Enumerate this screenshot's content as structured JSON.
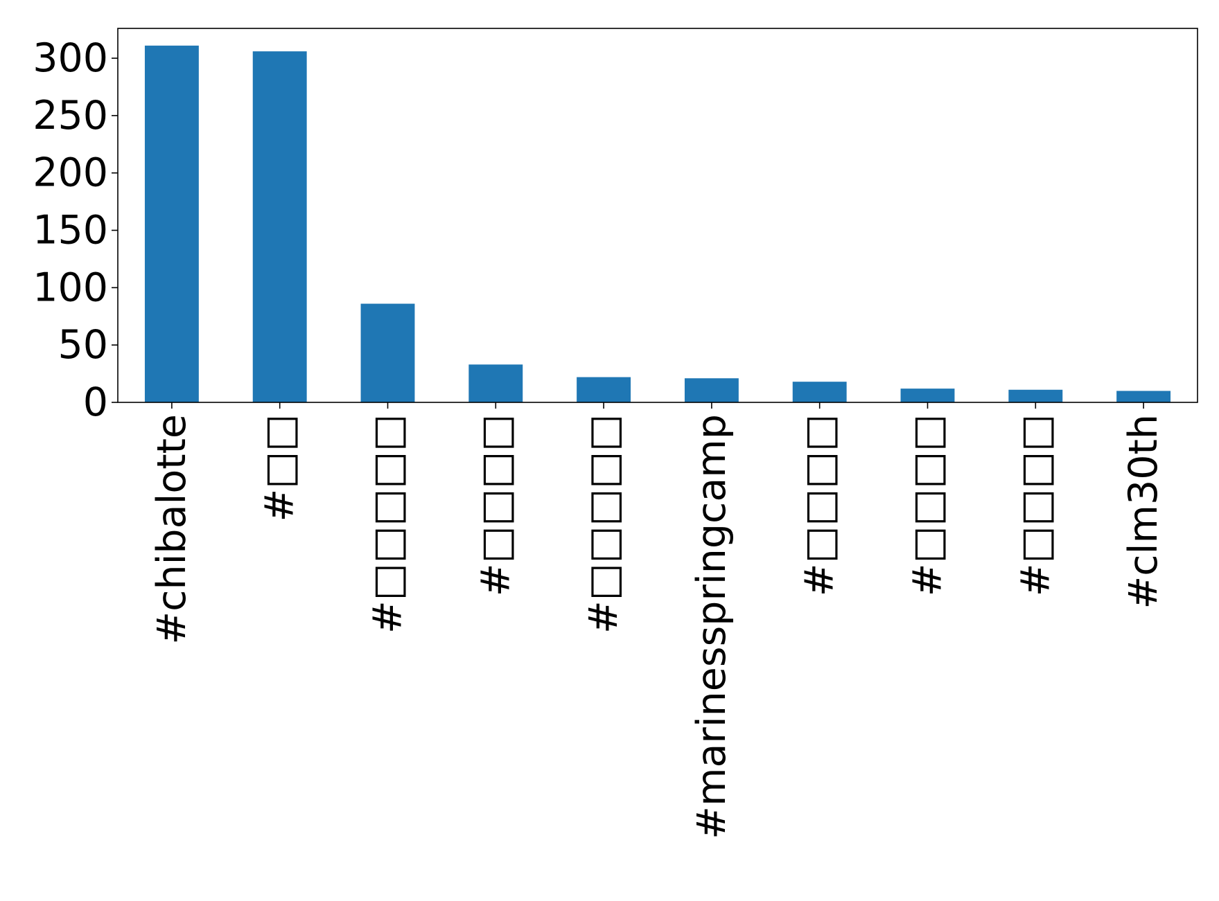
{
  "chart_data": {
    "type": "bar",
    "title": "",
    "xlabel": "",
    "ylabel": "",
    "categories": [
      "#chibalotte",
      "#□□",
      "#□□□□□",
      "#□□□□",
      "#□□□□□",
      "#marinesspringcamp",
      "#□□□□",
      "#□□□□",
      "#□□□□",
      "#clm30th"
    ],
    "values": [
      311,
      306,
      86,
      33,
      22,
      21,
      18,
      12,
      11,
      10
    ],
    "ylim": [
      0,
      326
    ],
    "yticks": [
      0,
      50,
      100,
      150,
      200,
      250,
      300
    ],
    "bar_color": "#1f77b4",
    "grid": false,
    "legend": "none"
  }
}
